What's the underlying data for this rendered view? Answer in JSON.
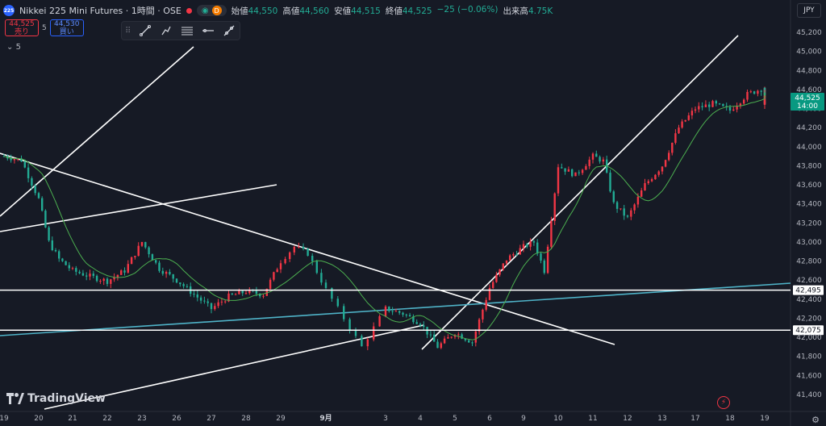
{
  "header": {
    "logo_text": "225",
    "symbol": "Nikkei 225 Mini Futures · 1時間 · OSE",
    "badge_d": "D",
    "ohlc": {
      "open_label": "始値",
      "open": "44,550",
      "high_label": "高値",
      "high": "44,560",
      "low_label": "安値",
      "low": "44,515",
      "close_label": "終値",
      "close": "44,525",
      "change": "−25 (−0.06%)",
      "volume_label": "出来高",
      "volume": "4.75K"
    },
    "currency": "JPY"
  },
  "trade": {
    "sell_price": "44,525",
    "sell_label": "売り",
    "spread": "5",
    "buy_price": "44,530",
    "buy_label": "買い"
  },
  "indicator_label": "5",
  "branding": {
    "name": "TradingView"
  },
  "colors": {
    "up": "#f23645",
    "down": "#22ab94",
    "ma": "#4caf50",
    "trendline": "#ffffff",
    "blue_line": "#4fb3c8",
    "background": "#161a25"
  },
  "chart_data": {
    "type": "candlestick",
    "title": "Nikkei 225 Mini Futures · 1時間 · OSE",
    "currency": "JPY",
    "x_ticks": [
      "19",
      "20",
      "21",
      "22",
      "23",
      "26",
      "27",
      "28",
      "29",
      "9月",
      "3",
      "4",
      "5",
      "6",
      "9",
      "10",
      "11",
      "12",
      "13",
      "17",
      "18",
      "19"
    ],
    "y_ticks": [
      "45,200",
      "45,000",
      "44,800",
      "44,600",
      "44,400",
      "44,200",
      "44,000",
      "43,800",
      "43,600",
      "43,400",
      "43,200",
      "43,000",
      "42,800",
      "42,600",
      "42,400",
      "42,200",
      "42,000",
      "41,800",
      "41,600",
      "41,400"
    ],
    "y_range": [
      41300,
      45300
    ],
    "x_range": [
      0,
      23
    ],
    "price_path_by_session": [
      [
        0,
        43900
      ],
      [
        0.5,
        43860
      ],
      [
        1,
        43450
      ],
      [
        1.3,
        43000
      ],
      [
        1.6,
        42820
      ],
      [
        2,
        42700
      ],
      [
        2.5,
        42640
      ],
      [
        3,
        42590
      ],
      [
        3.5,
        42700
      ],
      [
        4,
        43000
      ],
      [
        4.5,
        42720
      ],
      [
        5,
        42600
      ],
      [
        5.5,
        42450
      ],
      [
        6,
        42300
      ],
      [
        6.5,
        42430
      ],
      [
        7,
        42480
      ],
      [
        7.5,
        42450
      ],
      [
        8,
        42800
      ],
      [
        8.3,
        42950
      ],
      [
        8.6,
        42880
      ],
      [
        9,
        42500
      ],
      [
        9.3,
        42200
      ],
      [
        9.6,
        41900
      ],
      [
        10,
        42300
      ],
      [
        10.5,
        42250
      ],
      [
        11,
        42150
      ],
      [
        11.5,
        41900
      ],
      [
        12,
        42050
      ],
      [
        12.5,
        41950
      ],
      [
        13,
        42520
      ],
      [
        13.5,
        42820
      ],
      [
        14,
        42950
      ],
      [
        14.3,
        43000
      ],
      [
        14.6,
        42700
      ],
      [
        15,
        43800
      ],
      [
        15.5,
        43700
      ],
      [
        16,
        43900
      ],
      [
        16.3,
        43850
      ],
      [
        16.6,
        43400
      ],
      [
        17,
        43250
      ],
      [
        17.5,
        43600
      ],
      [
        18,
        43800
      ],
      [
        18.5,
        44200
      ],
      [
        19,
        44400
      ],
      [
        19.5,
        44450
      ],
      [
        20,
        44380
      ],
      [
        20.5,
        44550
      ],
      [
        21,
        44620
      ],
      [
        21.5,
        44500
      ],
      [
        22,
        44440
      ],
      [
        22.3,
        44600
      ],
      [
        22.6,
        44525
      ]
    ],
    "last_price": "44,525",
    "last_time": "14:00",
    "horizontal_levels": [
      {
        "label": "42,495",
        "value": 42495
      },
      {
        "label": "42,075",
        "value": 42075
      }
    ],
    "moving_average": {
      "color": "#4caf50"
    },
    "grid": false
  }
}
